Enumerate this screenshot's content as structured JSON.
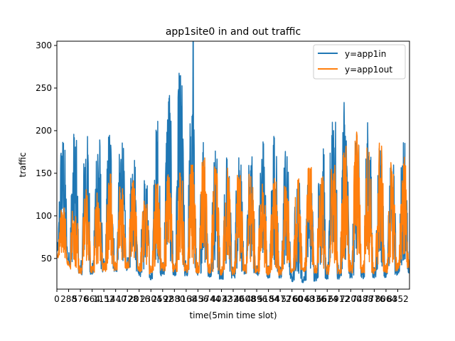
{
  "chart_data": {
    "type": "line",
    "title": "app1site0 in and out traffic",
    "xlabel": "time(5min time slot)",
    "ylabel": "traffic",
    "xlim": [
      0,
      8640
    ],
    "ylim": [
      14,
      305
    ],
    "x_ticks": [
      0,
      288,
      576,
      864,
      1152,
      1440,
      1728,
      2016,
      2304,
      2592,
      2880,
      3168,
      3456,
      3744,
      4032,
      4320,
      4608,
      4896,
      5184,
      5472,
      5760,
      6048,
      6336,
      6624,
      6912,
      7200,
      7488,
      7776,
      8064,
      8352
    ],
    "x_tick_labels": [
      "0",
      "288",
      "576",
      "864",
      "1152",
      "1440",
      "1728",
      "2016",
      "2304",
      "2592",
      "2880",
      "3168",
      "3456",
      "3744",
      "4032",
      "4320",
      "4608",
      "4896",
      "5184",
      "5472",
      "5760",
      "6048",
      "6336",
      "6624",
      "6912",
      "7200",
      "7488",
      "7776",
      "8064",
      "8352"
    ],
    "y_ticks": [
      50,
      100,
      150,
      200,
      250,
      300
    ],
    "y_tick_labels": [
      "50",
      "100",
      "150",
      "200",
      "250",
      "300"
    ],
    "legend_position": "top-right",
    "grid": false,
    "day_period_slots": 288,
    "series": [
      {
        "name": "y=app1in",
        "color": "#1f77b4",
        "daily_x": [
          144,
          432,
          720,
          1008,
          1296,
          1584,
          1872,
          2160,
          2448,
          2736,
          3024,
          3312,
          3600,
          3888,
          4176,
          4464,
          4752,
          5040,
          5328,
          5616,
          5904,
          6192,
          6480,
          6768,
          7056,
          7344,
          7632,
          7920,
          8208,
          8496
        ],
        "daily_peak": [
          195,
          198,
          200,
          202,
          196,
          192,
          182,
          140,
          210,
          240,
          272,
          222,
          190,
          180,
          170,
          188,
          168,
          190,
          196,
          178,
          145,
          150,
          205,
          260,
          232,
          200,
          210,
          180,
          160,
          195
        ],
        "daily_min": [
          55,
          32,
          30,
          32,
          35,
          34,
          38,
          22,
          28,
          30,
          28,
          30,
          28,
          26,
          25,
          28,
          30,
          28,
          26,
          25,
          20,
          22,
          25,
          24,
          26,
          25,
          27,
          26,
          28,
          32
        ],
        "spike": {
          "x": 3340,
          "y": 305
        }
      },
      {
        "name": "y=app1out",
        "color": "#ff7f0e",
        "daily_x": [
          144,
          432,
          720,
          1008,
          1296,
          1584,
          1872,
          2160,
          2448,
          2736,
          3024,
          3312,
          3600,
          3888,
          4176,
          4464,
          4752,
          5040,
          5328,
          5616,
          5904,
          6192,
          6480,
          6768,
          7056,
          7344,
          7632,
          7920,
          8208,
          8496
        ],
        "daily_peak": [
          110,
          132,
          135,
          130,
          150,
          148,
          142,
          120,
          140,
          150,
          155,
          160,
          170,
          160,
          158,
          150,
          155,
          150,
          145,
          135,
          142,
          160,
          150,
          170,
          182,
          200,
          180,
          190,
          160,
          170
        ],
        "daily_min": [
          50,
          30,
          32,
          33,
          35,
          36,
          40,
          30,
          35,
          35,
          33,
          33,
          32,
          30,
          30,
          32,
          32,
          30,
          30,
          30,
          35,
          33,
          32,
          30,
          32,
          33,
          32,
          30,
          33,
          38
        ]
      }
    ]
  }
}
